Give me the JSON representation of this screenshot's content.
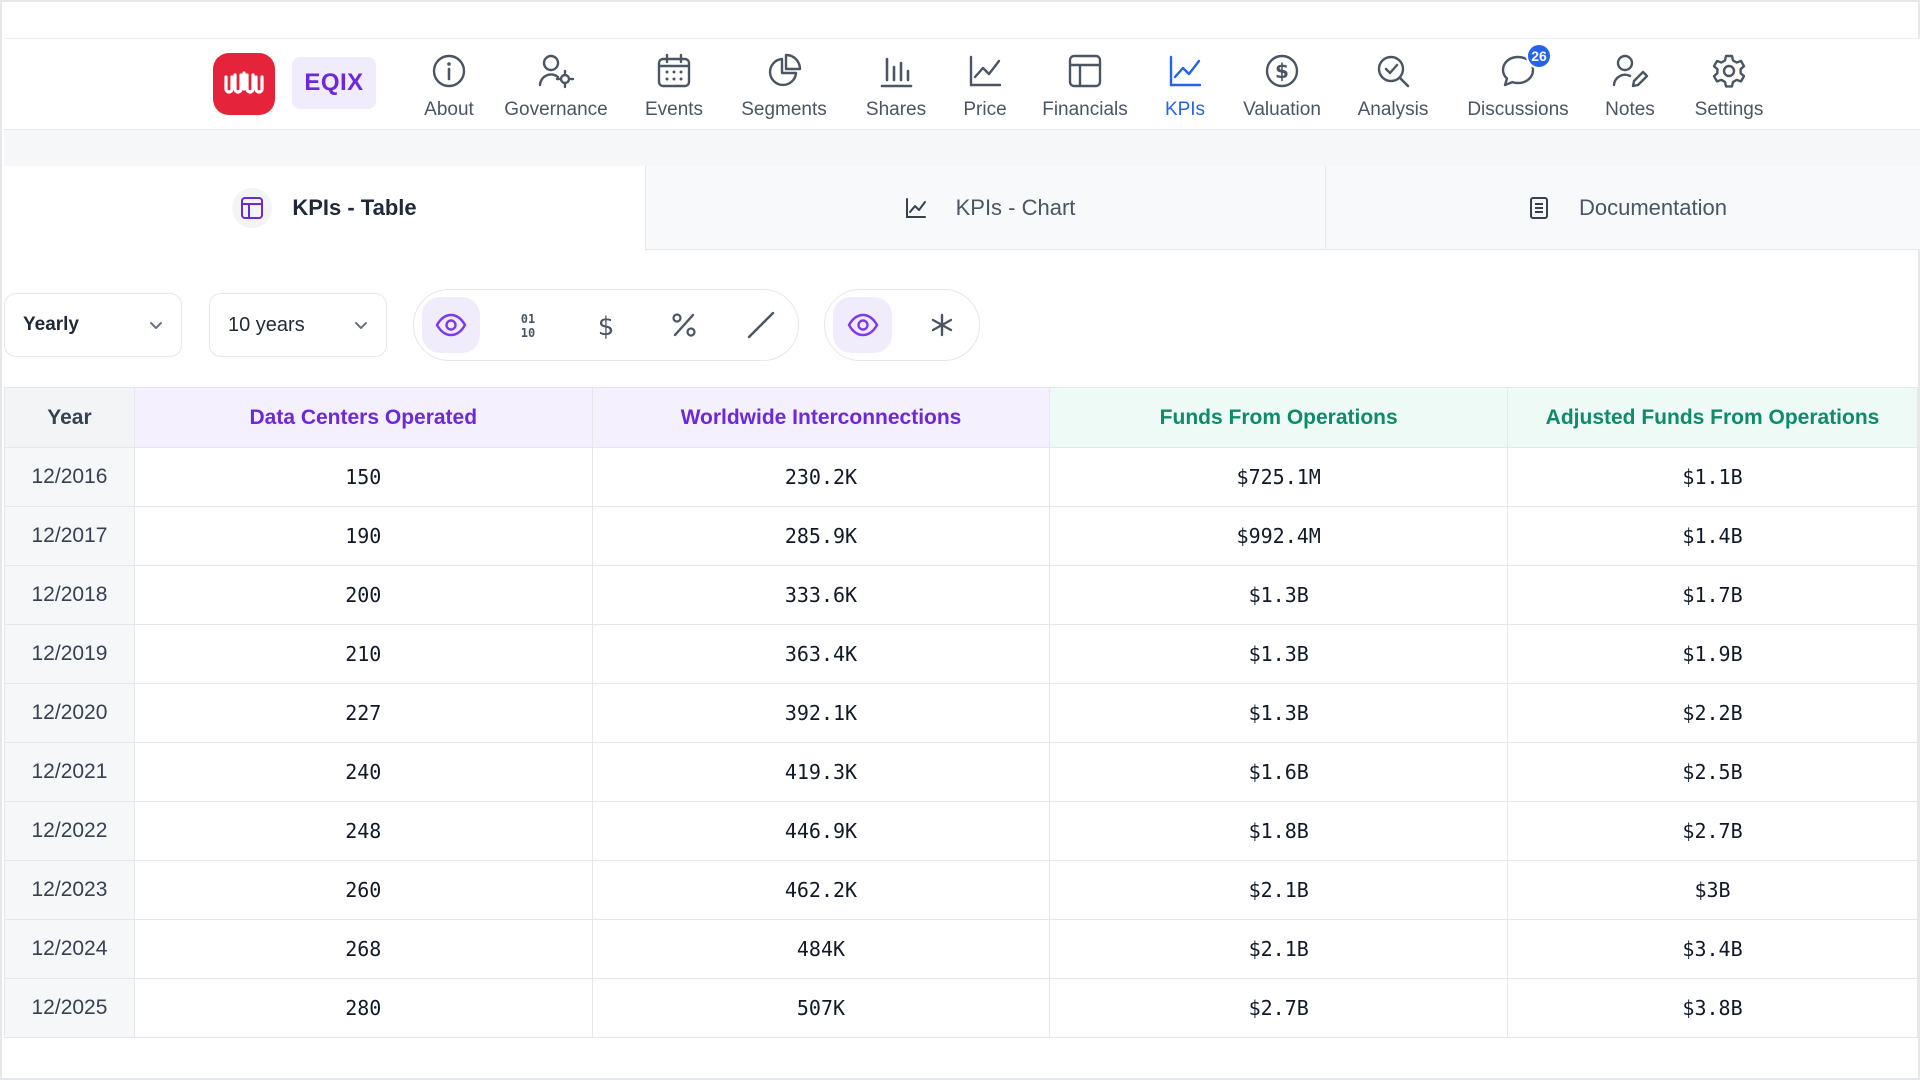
{
  "nav": {
    "ticker": "EQIX",
    "items": [
      {
        "label": "About",
        "icon": "info-icon"
      },
      {
        "label": "Governance",
        "icon": "user-gear-icon"
      },
      {
        "label": "Events",
        "icon": "calendar-icon"
      },
      {
        "label": "Segments",
        "icon": "pie-chart-icon"
      },
      {
        "label": "Shares",
        "icon": "bar-chart-icon"
      },
      {
        "label": "Price",
        "icon": "line-chart-icon"
      },
      {
        "label": "Financials",
        "icon": "table-icon"
      },
      {
        "label": "KPIs",
        "icon": "kpi-chart-icon"
      },
      {
        "label": "Valuation",
        "icon": "dollar-circle-icon"
      },
      {
        "label": "Analysis",
        "icon": "magnify-check-icon"
      },
      {
        "label": "Discussions",
        "icon": "chat-bubble-icon"
      },
      {
        "label": "Notes",
        "icon": "user-pen-icon"
      },
      {
        "label": "Settings",
        "icon": "gear-icon"
      }
    ],
    "active": "KPIs",
    "discussions_badge": "26",
    "colors": {
      "brand": "#e5243b",
      "active": "#2563eb",
      "ticker": "#6d28d9"
    }
  },
  "subtabs": [
    {
      "label": "KPIs - Table",
      "icon": "table-icon"
    },
    {
      "label": "KPIs - Chart",
      "icon": "line-chart-icon"
    },
    {
      "label": "Documentation",
      "icon": "document-icon"
    }
  ],
  "controls": {
    "period": "Yearly",
    "range": "10 years",
    "format_group": [
      "eye-icon",
      "binary-icon",
      "dollar-icon",
      "percent-icon",
      "slash-icon"
    ],
    "extra_group": [
      "eye-icon",
      "asterisk-icon"
    ]
  },
  "table": {
    "headers": [
      "Year",
      "Data Centers Operated",
      "Worldwide Interconnections",
      "Funds From Operations",
      "Adjusted Funds From Operations"
    ],
    "rows": [
      [
        "12/2016",
        "150",
        "230.2K",
        "$725.1M",
        "$1.1B"
      ],
      [
        "12/2017",
        "190",
        "285.9K",
        "$992.4M",
        "$1.4B"
      ],
      [
        "12/2018",
        "200",
        "333.6K",
        "$1.3B",
        "$1.7B"
      ],
      [
        "12/2019",
        "210",
        "363.4K",
        "$1.3B",
        "$1.9B"
      ],
      [
        "12/2020",
        "227",
        "392.1K",
        "$1.3B",
        "$2.2B"
      ],
      [
        "12/2021",
        "240",
        "419.3K",
        "$1.6B",
        "$2.5B"
      ],
      [
        "12/2022",
        "248",
        "446.9K",
        "$1.8B",
        "$2.7B"
      ],
      [
        "12/2023",
        "260",
        "462.2K",
        "$2.1B",
        "$3B"
      ],
      [
        "12/2024",
        "268",
        "484K",
        "$2.1B",
        "$3.4B"
      ],
      [
        "12/2025",
        "280",
        "507K",
        "$2.7B",
        "$3.8B"
      ]
    ]
  }
}
